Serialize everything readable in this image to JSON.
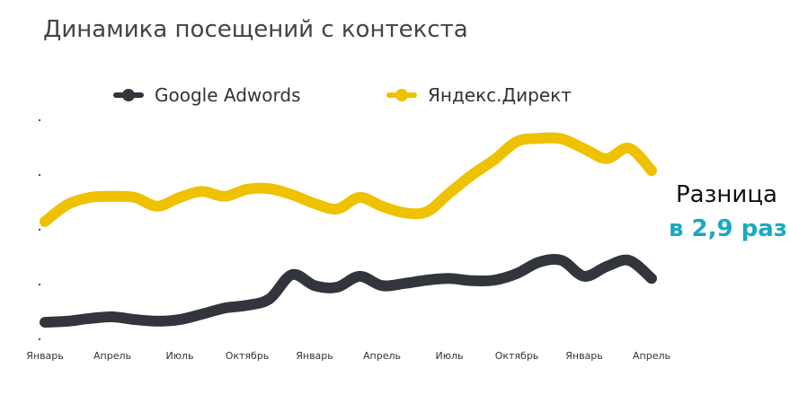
{
  "chart_data": {
    "type": "line",
    "title": "Динамика посещений с контекста",
    "xlabel": "",
    "ylabel": "",
    "ylim": [
      0,
      4
    ],
    "yticks": [
      0,
      1,
      2,
      3,
      4
    ],
    "grid": false,
    "legend_position": "top",
    "x_tick_labels": [
      "Январь",
      "Апрель",
      "Июль",
      "Октябрь",
      "Январь",
      "Апрель",
      "Июль",
      "Октябрь",
      "Январь",
      "Апрель"
    ],
    "months_between_ticks": 3,
    "series": [
      {
        "name": "Google Adwords",
        "color": "#33353d",
        "values": [
          0.31,
          0.33,
          0.38,
          0.41,
          0.36,
          0.33,
          0.36,
          0.46,
          0.57,
          0.62,
          0.74,
          1.18,
          0.98,
          0.95,
          1.15,
          0.98,
          1.02,
          1.08,
          1.11,
          1.07,
          1.08,
          1.2,
          1.41,
          1.44,
          1.15,
          1.33,
          1.44,
          1.11
        ]
      },
      {
        "name": "Яндекс.Директ",
        "color": "#eec200",
        "values": [
          2.15,
          2.46,
          2.59,
          2.61,
          2.59,
          2.43,
          2.59,
          2.7,
          2.61,
          2.74,
          2.75,
          2.64,
          2.48,
          2.38,
          2.59,
          2.43,
          2.31,
          2.33,
          2.67,
          3.0,
          3.28,
          3.61,
          3.67,
          3.66,
          3.48,
          3.3,
          3.49,
          3.08
        ]
      }
    ],
    "annotation": {
      "line1": "Разница",
      "line2": "в 2,9 раз",
      "line2_color": "#1aa9c0"
    }
  }
}
